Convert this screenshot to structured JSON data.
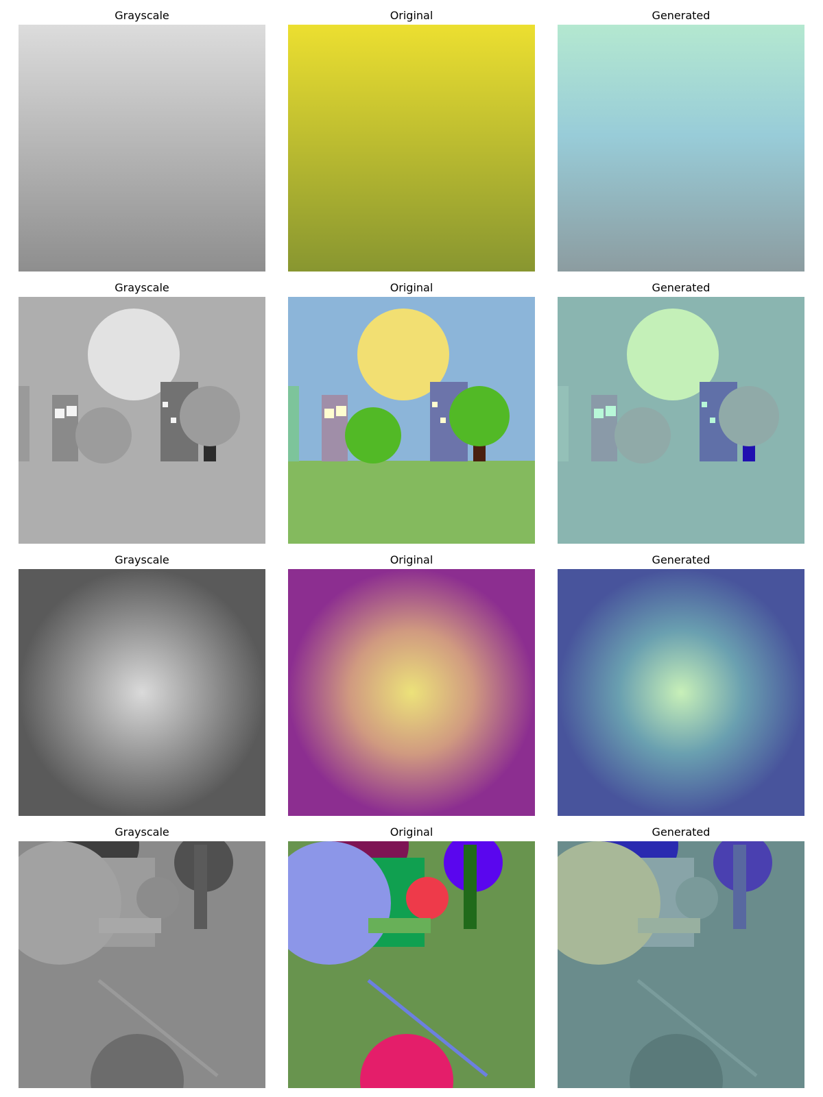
{
  "figure": {
    "rows": [
      {
        "panels": [
          {
            "title": "Grayscale",
            "scene": "gradient",
            "version": "gray"
          },
          {
            "title": "Original",
            "scene": "gradient",
            "version": "orig"
          },
          {
            "title": "Generated",
            "scene": "gradient",
            "version": "gen"
          }
        ]
      },
      {
        "panels": [
          {
            "title": "Grayscale",
            "scene": "town",
            "version": "gray"
          },
          {
            "title": "Original",
            "scene": "town",
            "version": "orig"
          },
          {
            "title": "Generated",
            "scene": "town",
            "version": "gen"
          }
        ]
      },
      {
        "panels": [
          {
            "title": "Grayscale",
            "scene": "radial",
            "version": "gray"
          },
          {
            "title": "Original",
            "scene": "radial",
            "version": "orig"
          },
          {
            "title": "Generated",
            "scene": "radial",
            "version": "gen"
          }
        ]
      },
      {
        "panels": [
          {
            "title": "Grayscale",
            "scene": "shapes",
            "version": "gray"
          },
          {
            "title": "Original",
            "scene": "shapes",
            "version": "orig"
          },
          {
            "title": "Generated",
            "scene": "shapes",
            "version": "gen"
          }
        ]
      }
    ]
  },
  "palettes": {
    "gradient": {
      "gray": {
        "top": "#dcdcdc",
        "bottom": "#8e8e8e"
      },
      "orig": {
        "top": "#ecdf30",
        "bottom": "#889630"
      },
      "gen": {
        "top": "#b4e8d0",
        "mid": "#98ccd8",
        "bottom": "#8c9ca0"
      }
    },
    "town": {
      "gray": {
        "sky": "#aeaeae",
        "ground": "#aeaeae",
        "sun": "#e2e2e2",
        "left_building": "#9a9a9a",
        "building1": "#8a8a8a",
        "building2": "#727272",
        "window": "#f4f4f4",
        "tree": "#9c9c9c",
        "trunk": "#2c2c2c"
      },
      "orig": {
        "sky": "#8cb5d9",
        "ground": "#84ba5e",
        "sun": "#f2df72",
        "left_building": "#7dc49b",
        "building1": "#a08ea8",
        "building2": "#6c74aa",
        "window": "#fffdd0",
        "tree": "#52b926",
        "trunk": "#4a2010"
      },
      "gen": {
        "sky": "#8ab5b0",
        "ground": "#8ab5b0",
        "sun": "#c4f0b8",
        "left_building": "#94c0b8",
        "building1": "#8a9aa8",
        "building2": "#6070a8",
        "window": "#b8f8d8",
        "tree": "#90aaa8",
        "trunk": "#2010b0"
      }
    },
    "radial": {
      "gray": {
        "center": "#dadada",
        "edge": "#5a5a5a"
      },
      "orig": {
        "center": "#ece27a",
        "mid": "#d09a80",
        "edge": "#8c2e90"
      },
      "gen": {
        "center": "#c8f0b8",
        "mid": "#6aa0b0",
        "edge": "#48549c"
      }
    },
    "shapes": {
      "gray": {
        "bg": "#8a8a8a",
        "maroon": "#3e3e3e",
        "green_rect": "#9c9c9c",
        "red_circle": "#8c8c8c",
        "lavender": "#a2a2a2",
        "bar": "#a8a8a8",
        "blue_circle": "#505050",
        "dark_bar": "#5a5a5a",
        "line": "#9a9a9a",
        "pink": "#6c6c6c"
      },
      "orig": {
        "bg": "#68944e",
        "maroon": "#7e1454",
        "green_rect": "#10a050",
        "red_circle": "#ee3a4a",
        "lavender": "#8c96e8",
        "bar": "#68b058",
        "blue_circle": "#5a06ee",
        "dark_bar": "#206a1a",
        "line": "#6c80e0",
        "pink": "#e41e6a"
      },
      "gen": {
        "bg": "#6a8c8c",
        "maroon": "#2a2ab0",
        "green_rect": "#88a4a8",
        "red_circle": "#7a9a9a",
        "lavender": "#a8b898",
        "bar": "#98b0a0",
        "blue_circle": "#4a40b0",
        "dark_bar": "#5868a0",
        "line": "#7a9c9c",
        "pink": "#5a7a7a"
      }
    }
  }
}
